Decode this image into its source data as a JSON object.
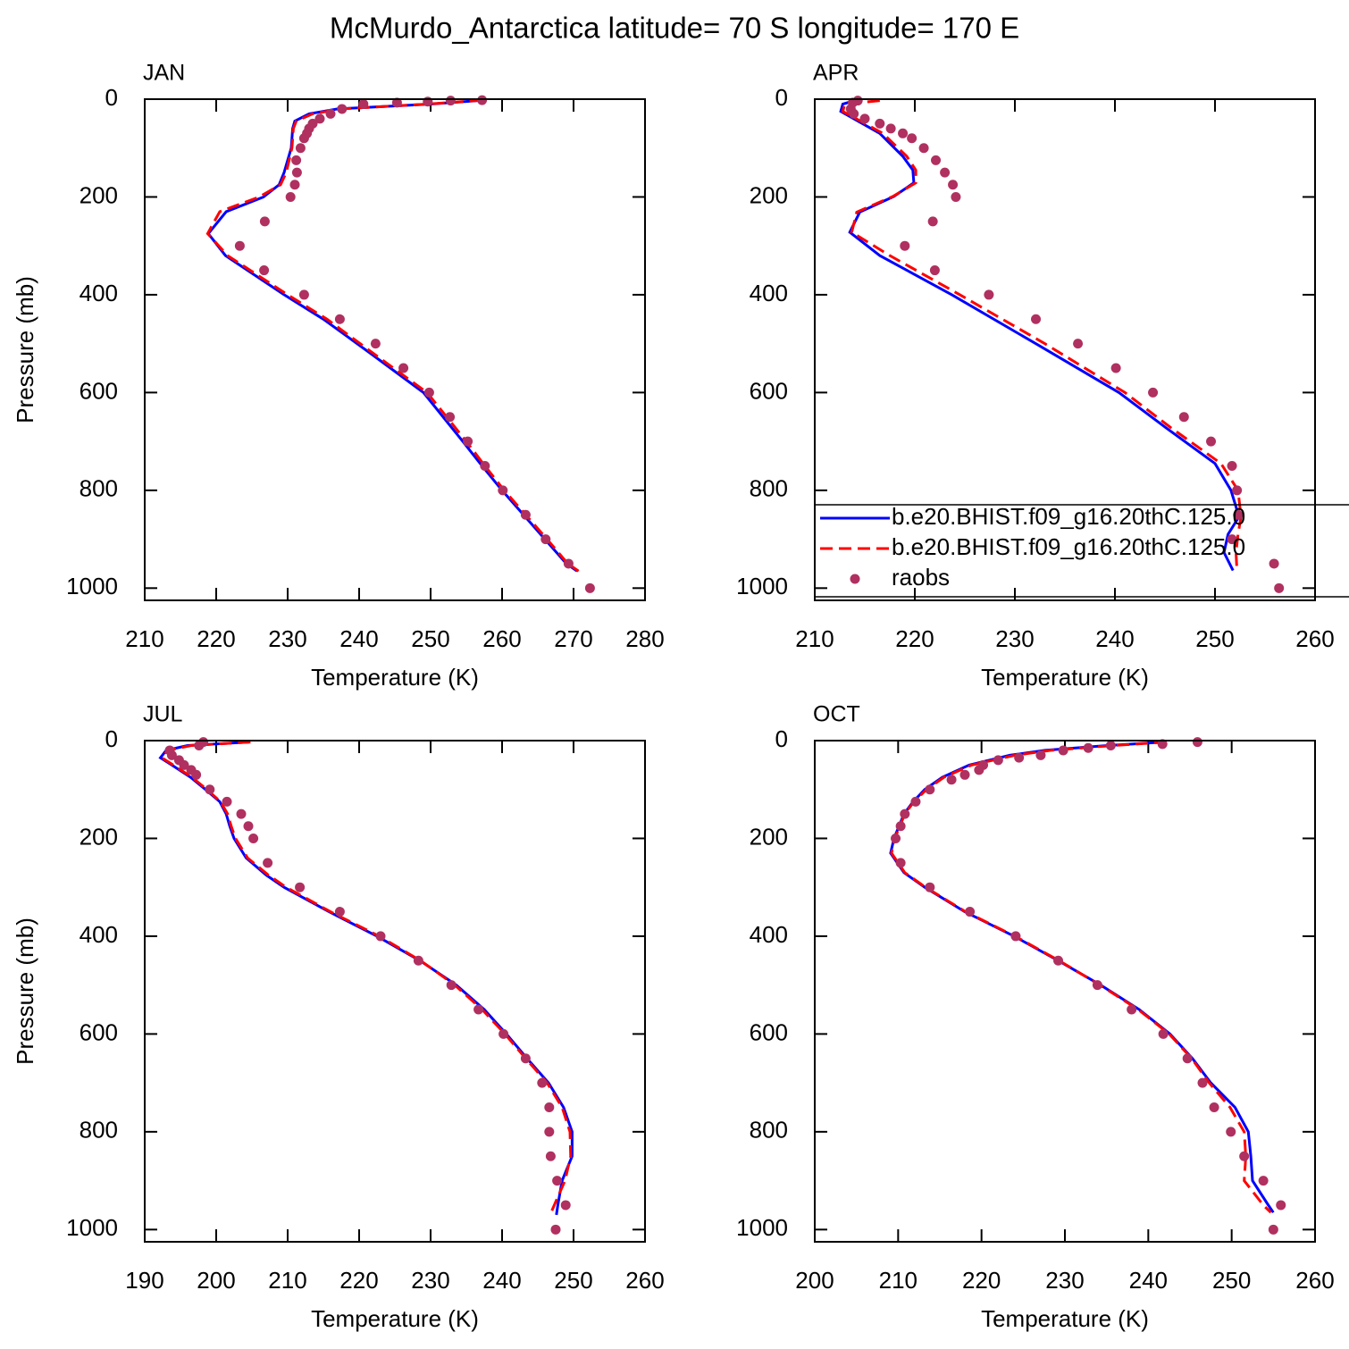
{
  "title": "McMurdo_Antarctica  latitude= 70 S longitude= 170 E",
  "chart_data": [
    {
      "type": "line",
      "title": "JAN",
      "xlabel": "Temperature (K)",
      "ylabel": "Pressure (mb)",
      "xlim": [
        210,
        280
      ],
      "xticks": [
        210,
        220,
        230,
        240,
        250,
        260,
        270,
        280
      ],
      "ylim": [
        0,
        1025
      ],
      "yticks": [
        0,
        200,
        400,
        600,
        800,
        1000
      ],
      "y_inverted": true,
      "series": [
        {
          "color": "#0000ff",
          "style": "solid",
          "y": [
            2,
            10,
            20,
            30,
            45,
            60,
            100,
            150,
            175,
            200,
            230,
            275,
            320,
            400,
            450,
            520,
            600,
            700,
            750,
            800,
            850,
            900,
            950,
            965
          ],
          "x": [
            257.5,
            250,
            237,
            233,
            231,
            230.7,
            230.5,
            229.5,
            228.8,
            226.6,
            221.4,
            218.9,
            221.3,
            229.5,
            235,
            241.6,
            249,
            254.5,
            257.2,
            260,
            263,
            266,
            269,
            270.5
          ]
        },
        {
          "color": "#ff0000",
          "style": "dashed",
          "y": [
            2,
            10,
            20,
            30,
            45,
            60,
            100,
            150,
            175,
            200,
            230,
            275,
            320,
            400,
            450,
            520,
            600,
            700,
            750,
            800,
            850,
            900,
            950,
            965
          ],
          "x": [
            257.2,
            249.5,
            237.5,
            233.5,
            231.2,
            230.8,
            230.6,
            229.8,
            229,
            226,
            220.5,
            218.8,
            221.6,
            230,
            235.5,
            242,
            249.5,
            255,
            257.6,
            260.3,
            263.3,
            266.3,
            269.2,
            270.7
          ]
        },
        {
          "color": "#b03060",
          "style": "markers",
          "y": [
            2,
            3,
            5,
            7,
            10,
            20,
            30,
            40,
            50,
            60,
            70,
            80,
            100,
            125,
            150,
            175,
            200,
            250,
            300,
            350,
            400,
            450,
            500,
            550,
            600,
            650,
            700,
            750,
            800,
            850,
            900,
            950,
            1000
          ],
          "x": [
            257.2,
            252.8,
            249.6,
            245.3,
            240.6,
            237.6,
            236,
            234.5,
            233.5,
            233,
            232.7,
            232.3,
            231.8,
            231.2,
            231.3,
            231,
            230.4,
            226.8,
            223.3,
            226.7,
            232.3,
            237.3,
            242.3,
            246.2,
            249.8,
            252.7,
            255.2,
            257.6,
            260.1,
            263.3,
            266.1,
            269.3,
            272.3
          ]
        }
      ]
    },
    {
      "type": "line",
      "title": "APR",
      "xlabel": "Temperature (K)",
      "ylabel": "",
      "legend": "lower-right",
      "xlim": [
        210,
        260
      ],
      "xticks": [
        210,
        220,
        230,
        240,
        250,
        260
      ],
      "ylim": [
        0,
        1025
      ],
      "yticks": [
        0,
        200,
        400,
        600,
        800,
        1000
      ],
      "y_inverted": true,
      "series": [
        {
          "name": "b.e20.BHIST.f09_g16.20thC.125.0",
          "color": "#0000ff",
          "style": "solid",
          "y": [
            3,
            10,
            25,
            70,
            117,
            145,
            171,
            199,
            231,
            272,
            320,
            400,
            500,
            600,
            672,
            745,
            800,
            854,
            890,
            927,
            964
          ],
          "x": [
            214,
            212.8,
            212.6,
            216.5,
            218.8,
            219.8,
            219.9,
            217.9,
            214.5,
            213.5,
            216.5,
            223.7,
            232.1,
            240.4,
            245.1,
            250,
            251.6,
            252.4,
            251.3,
            250.9,
            251.8
          ]
        },
        {
          "name": "b.e20.BHIST.f09_g16.20thC.125.0",
          "color": "#ff0000",
          "style": "dashed",
          "y": [
            3,
            10,
            25,
            70,
            117,
            145,
            171,
            199,
            231,
            272,
            320,
            400,
            500,
            600,
            672,
            745,
            800,
            854,
            890,
            927,
            964
          ],
          "x": [
            216.5,
            213,
            212.8,
            216.8,
            219.2,
            220.1,
            220.1,
            217.8,
            214.2,
            213.7,
            217.5,
            224.5,
            233,
            241,
            245.6,
            250.6,
            252.3,
            252.6,
            252.3,
            252.1,
            252.2
          ]
        },
        {
          "name": "raobs",
          "color": "#b03060",
          "style": "markers",
          "y": [
            3,
            7,
            20,
            30,
            40,
            50,
            60,
            70,
            80,
            100,
            125,
            150,
            175,
            200,
            250,
            300,
            350,
            400,
            450,
            500,
            550,
            600,
            650,
            700,
            750,
            800,
            850,
            900,
            950,
            1000
          ],
          "x": [
            214.3,
            213.8,
            213.6,
            213.9,
            215,
            216.5,
            217.6,
            218.8,
            219.7,
            220.9,
            222.1,
            223,
            223.8,
            224.1,
            221.8,
            219,
            222,
            227.4,
            232.1,
            236.3,
            240.1,
            243.8,
            246.9,
            249.6,
            251.7,
            252.2,
            252.3,
            251.7,
            255.9,
            256.4
          ]
        }
      ]
    },
    {
      "type": "line",
      "title": "JUL",
      "xlabel": "Temperature (K)",
      "ylabel": "Pressure (mb)",
      "xlim": [
        190,
        260
      ],
      "xticks": [
        190,
        200,
        210,
        220,
        230,
        240,
        250,
        260
      ],
      "ylim": [
        0,
        1025
      ],
      "yticks": [
        0,
        200,
        400,
        600,
        800,
        1000
      ],
      "y_inverted": true,
      "series": [
        {
          "color": "#0000ff",
          "style": "solid",
          "y": [
            3,
            10,
            20,
            35,
            50,
            75,
            100,
            125,
            150,
            175,
            200,
            240,
            275,
            300,
            350,
            400,
            450,
            500,
            550,
            600,
            650,
            700,
            750,
            800,
            850,
            900,
            950,
            970
          ],
          "x": [
            204.6,
            196,
            193,
            192.2,
            193.8,
            196.4,
            198.5,
            200.5,
            201.4,
            201.9,
            202.5,
            204.2,
            207,
            209.5,
            215.8,
            222.5,
            228.5,
            233.6,
            237.5,
            240.6,
            243.5,
            246.5,
            248.6,
            249.8,
            249.8,
            248.4,
            247.8,
            247.6
          ]
        },
        {
          "color": "#ff0000",
          "style": "dashed",
          "y": [
            3,
            10,
            20,
            35,
            50,
            75,
            100,
            125,
            150,
            175,
            200,
            240,
            275,
            300,
            350,
            400,
            450,
            500,
            550,
            600,
            650,
            700,
            750,
            800,
            850,
            900,
            950,
            967
          ],
          "x": [
            204.8,
            196.5,
            193.2,
            192.4,
            194,
            196.6,
            198.7,
            200.6,
            201.6,
            202.1,
            202.7,
            204.4,
            207.3,
            209.8,
            216,
            222.8,
            228.6,
            233.4,
            237.2,
            240.4,
            243.3,
            246.3,
            248.4,
            249.5,
            249.6,
            248.8,
            247.3,
            246.8
          ]
        },
        {
          "color": "#b03060",
          "style": "markers",
          "y": [
            3,
            10,
            20,
            30,
            40,
            50,
            60,
            70,
            100,
            125,
            150,
            175,
            200,
            250,
            300,
            350,
            400,
            450,
            500,
            550,
            600,
            650,
            700,
            750,
            800,
            850,
            900,
            950,
            1000
          ],
          "x": [
            198.2,
            197.6,
            193.5,
            193.8,
            194.8,
            195.5,
            196.5,
            197.2,
            199.1,
            201.5,
            203.5,
            204.5,
            205.2,
            207.2,
            211.7,
            217.3,
            223,
            228.3,
            232.9,
            236.7,
            240.2,
            243.3,
            245.6,
            246.6,
            246.6,
            246.8,
            247.7,
            248.9,
            247.5
          ]
        }
      ]
    },
    {
      "type": "line",
      "title": "OCT",
      "xlabel": "Temperature (K)",
      "ylabel": "",
      "xlim": [
        200,
        260
      ],
      "xticks": [
        200,
        210,
        220,
        230,
        240,
        250,
        260
      ],
      "ylim": [
        0,
        1025
      ],
      "yticks": [
        0,
        200,
        400,
        600,
        800,
        1000
      ],
      "y_inverted": true,
      "series": [
        {
          "color": "#0000ff",
          "style": "solid",
          "y": [
            3,
            10,
            20,
            30,
            50,
            75,
            100,
            125,
            150,
            175,
            200,
            230,
            270,
            300,
            350,
            400,
            450,
            500,
            550,
            600,
            650,
            700,
            750,
            800,
            850,
            900,
            950,
            965
          ],
          "x": [
            241.9,
            235.1,
            227.6,
            223.4,
            218.5,
            215.3,
            213.2,
            211.8,
            210.7,
            210.1,
            209.5,
            209.1,
            210.7,
            213.2,
            218,
            223.9,
            229.2,
            234.3,
            238.9,
            242.6,
            245.3,
            247.5,
            250.4,
            252,
            252.3,
            252.5,
            254.4,
            255
          ]
        },
        {
          "color": "#ff0000",
          "style": "dashed",
          "y": [
            3,
            10,
            20,
            30,
            50,
            75,
            100,
            125,
            150,
            175,
            200,
            230,
            270,
            300,
            350,
            400,
            450,
            500,
            550,
            600,
            650,
            700,
            750,
            800,
            850,
            900,
            950,
            965
          ],
          "x": [
            242.2,
            235.8,
            228.3,
            224,
            218.8,
            215.5,
            213.4,
            211.9,
            210.8,
            210.2,
            209.6,
            209.2,
            210.8,
            213.3,
            218.1,
            224,
            229.3,
            234.2,
            238.8,
            242.5,
            245.2,
            247.3,
            249.8,
            251.5,
            251.7,
            251.5,
            253.8,
            254.7
          ]
        },
        {
          "color": "#b03060",
          "style": "markers",
          "y": [
            3,
            7,
            10,
            15,
            20,
            30,
            35,
            40,
            50,
            60,
            70,
            80,
            100,
            125,
            150,
            175,
            200,
            250,
            300,
            350,
            400,
            450,
            500,
            550,
            600,
            650,
            700,
            750,
            800,
            850,
            900,
            950,
            1000
          ],
          "x": [
            245.9,
            241.7,
            235.5,
            232.8,
            229.8,
            227.1,
            224.5,
            222,
            220.2,
            219.7,
            218,
            216.4,
            213.8,
            212.1,
            210.8,
            210.3,
            209.7,
            210.3,
            213.8,
            218.6,
            224.1,
            229.2,
            233.9,
            238,
            241.8,
            244.7,
            246.5,
            247.9,
            249.9,
            251.5,
            253.8,
            255.9,
            255
          ]
        }
      ]
    }
  ]
}
